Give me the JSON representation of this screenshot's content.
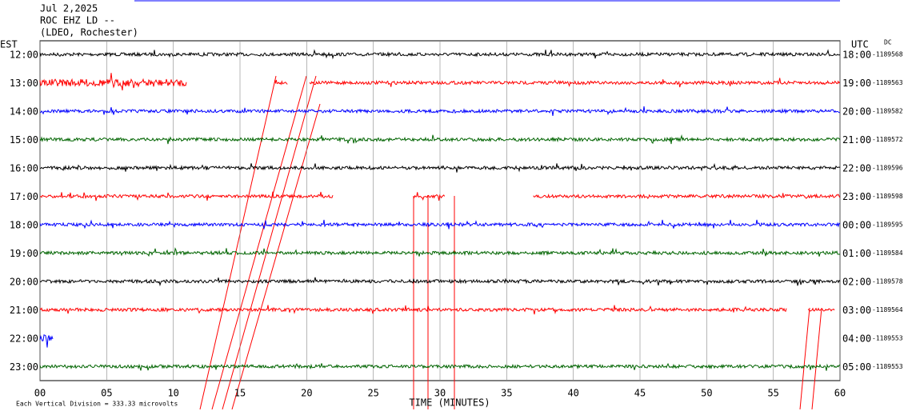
{
  "header": {
    "date": "Jul 2,2025",
    "station": "ROC EHZ LD --",
    "location": "(LDEO, Rochester)"
  },
  "left_zone": "EST",
  "right_zone": "UTC",
  "dc_label": "DC",
  "chart_data": {
    "type": "helicorder",
    "xlim": [
      0,
      60
    ],
    "xticks": [
      {
        "value": 0,
        "label": "00"
      },
      {
        "value": 5,
        "label": "05"
      },
      10,
      15,
      20,
      25,
      30,
      35,
      40,
      45,
      50,
      55,
      60
    ],
    "x_label": "TIME (MINUTES)",
    "rows": [
      {
        "left": "12:00",
        "right": "18:00",
        "dc": "-1189568",
        "color": "#000000",
        "segments": [
          [
            0,
            60
          ]
        ]
      },
      {
        "left": "13:00",
        "right": "19:00",
        "dc": "-1189563",
        "color": "#ff0000",
        "segments": [
          [
            0,
            11
          ],
          [
            17.6,
            18.6
          ],
          [
            20.2,
            60
          ]
        ]
      },
      {
        "left": "14:00",
        "right": "20:00",
        "dc": "-1189582",
        "color": "#0000ff",
        "segments": [
          [
            0,
            60
          ]
        ]
      },
      {
        "left": "15:00",
        "right": "21:00",
        "dc": "-1189572",
        "color": "#006400",
        "segments": [
          [
            0,
            60
          ]
        ]
      },
      {
        "left": "16:00",
        "right": "22:00",
        "dc": "-1189596",
        "color": "#000000",
        "segments": [
          [
            0,
            60
          ]
        ]
      },
      {
        "left": "17:00",
        "right": "23:00",
        "dc": "-1189598",
        "color": "#ff0000",
        "segments": [
          [
            0,
            22
          ],
          [
            28,
            30.4
          ],
          [
            37,
            60
          ]
        ]
      },
      {
        "left": "18:00",
        "right": "00:00",
        "dc": "-1189595",
        "color": "#0000ff",
        "segments": [
          [
            0,
            60
          ]
        ]
      },
      {
        "left": "19:00",
        "right": "01:00",
        "dc": "-1189584",
        "color": "#006400",
        "segments": [
          [
            0,
            60
          ]
        ]
      },
      {
        "left": "20:00",
        "right": "02:00",
        "dc": "-1189578",
        "color": "#000000",
        "segments": [
          [
            0,
            60
          ]
        ]
      },
      {
        "left": "21:00",
        "right": "03:00",
        "dc": "-1189564",
        "color": "#ff0000",
        "segments": [
          [
            0,
            56
          ],
          [
            57.6,
            59.6
          ]
        ]
      },
      {
        "left": "22:00",
        "right": "04:00",
        "dc": "-1189553",
        "color": "#0000ff",
        "segments": [
          [
            0,
            1
          ]
        ]
      },
      {
        "left": "23:00",
        "right": "05:00",
        "dc": "-1189553",
        "color": "#006400",
        "segments": [
          [
            0,
            60
          ]
        ]
      }
    ]
  },
  "footer": "Each Vertical Division = 333.33 microvolts"
}
